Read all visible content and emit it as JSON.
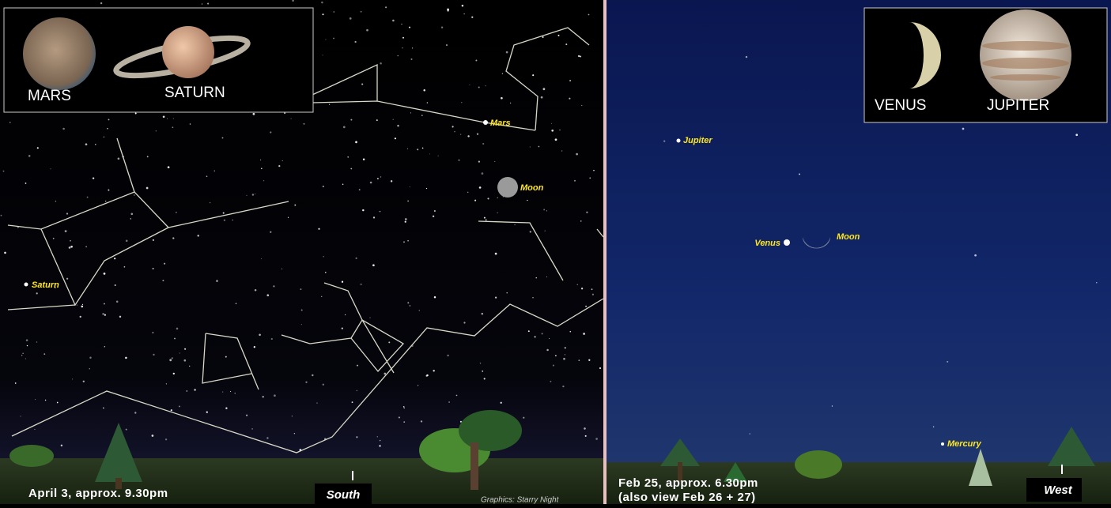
{
  "left_panel": {
    "insets": [
      "MARS",
      "SATURN"
    ],
    "labels": [
      "Mars",
      "Moon",
      "Saturn"
    ],
    "caption": "April 3, approx. 9.30pm",
    "direction": "South",
    "credit": "Graphics: Starry Night"
  },
  "right_panel": {
    "insets": [
      "VENUS",
      "JUPITER"
    ],
    "labels": [
      "Jupiter",
      "Venus",
      "Moon",
      "Mercury"
    ],
    "caption": [
      "Feb 25, approx. 6.30pm",
      "(also view Feb 26 + 27)"
    ],
    "direction": "West"
  }
}
